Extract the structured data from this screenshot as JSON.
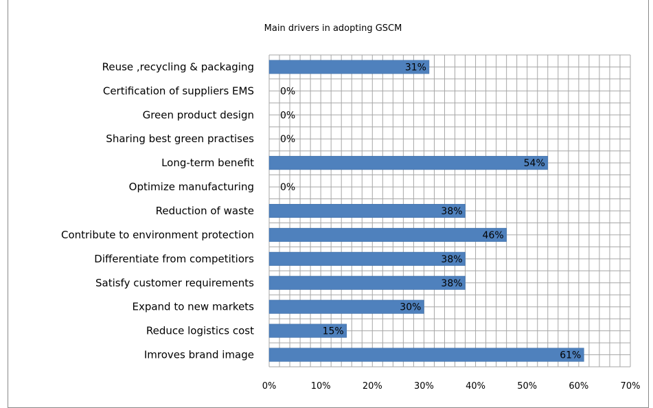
{
  "chart_data": {
    "type": "bar",
    "orientation": "horizontal",
    "title": "Main drivers in adopting GSCM",
    "xlabel": "",
    "ylabel": "",
    "categories": [
      "Reuse ,recycling & packaging",
      "Certification of suppliers EMS",
      "Green product design",
      "Sharing best green practises",
      "Long-term benefit",
      "Optimize manufacturing",
      "Reduction of waste",
      "Contribute to environment protection",
      "Differentiate from competitiors",
      "Satisfy customer requirements",
      "Expand to new markets",
      "Reduce logistics cost",
      "Imroves brand image"
    ],
    "values": [
      31,
      0,
      0,
      0,
      54,
      0,
      38,
      46,
      38,
      38,
      30,
      15,
      61
    ],
    "data_labels": [
      "31%",
      "0%",
      "0%",
      "0%",
      "54%",
      "0%",
      "38%",
      "46%",
      "38%",
      "38%",
      "30%",
      "15%",
      "61%"
    ],
    "xlim": [
      0,
      70
    ],
    "x_ticks": [
      "0%",
      "10%",
      "20%",
      "30%",
      "40%",
      "50%",
      "60%",
      "70%"
    ],
    "grid": true,
    "legend": "none",
    "bar_color": "#4f81bd",
    "grid_color": "#a6a6a6"
  }
}
